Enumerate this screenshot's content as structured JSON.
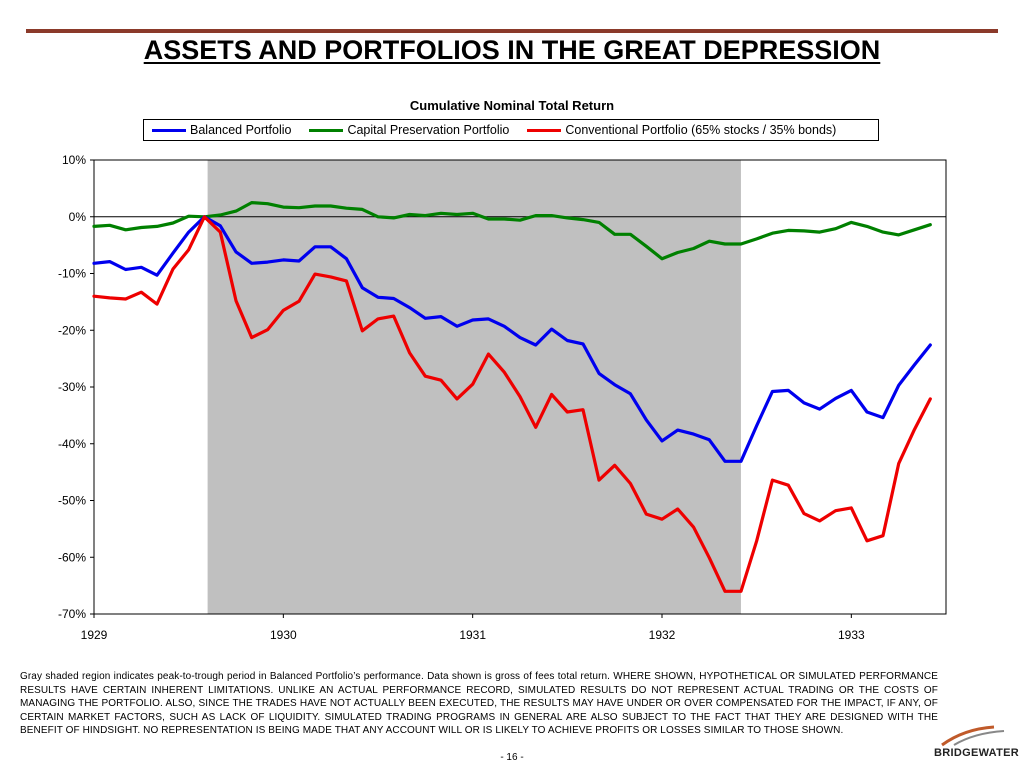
{
  "slide": {
    "title": "ASSETS AND PORTFOLIOS IN THE GREAT DEPRESSION",
    "disclaimer": "Gray shaded region indicates peak-to-trough period in Balanced Portfolio’s performance.  Data shown is gross of fees total return.  WHERE SHOWN, HYPOTHETICAL OR SIMULATED PERFORMANCE RESULTS HAVE CERTAIN INHERENT LIMITATIONS.  UNLIKE AN ACTUAL PERFORMANCE RECORD, SIMULATED RESULTS DO NOT REPRESENT ACTUAL TRADING OR THE COSTS OF MANAGING THE PORTFOLIO.  ALSO, SINCE THE TRADES HAVE NOT ACTUALLY BEEN EXECUTED, THE RESULTS MAY HAVE UNDER OR OVER COMPENSATED FOR THE IMPACT, IF ANY, OF CERTAIN MARKET FACTORS, SUCH AS LACK OF LIQUIDITY.  SIMULATED TRADING PROGRAMS IN GENERAL ARE ALSO SUBJECT TO THE FACT THAT THEY ARE DESIGNED WITH THE BENEFIT OF HINDSIGHT.  NO REPRESENTATION IS BEING MADE THAT ANY ACCOUNT WILL OR IS LIKELY TO ACHIEVE PROFITS OR LOSSES SIMILAR TO THOSE SHOWN.",
    "page_number": "- 16 -",
    "logo_text": "BRIDGEWATER"
  },
  "colors": {
    "title_rule": "#8b3a2a",
    "balanced": "#0000ee",
    "capital_preservation": "#008000",
    "conventional": "#ee0000",
    "shade": "#c0c0c0"
  },
  "chart_data": {
    "type": "line",
    "title": "Cumulative Nominal Total Return",
    "xlabel": "",
    "ylabel": "",
    "x_ticks": [
      "1929",
      "1930",
      "1931",
      "1932",
      "1933"
    ],
    "y_ticks": [
      "10%",
      "0%",
      "-10%",
      "-20%",
      "-30%",
      "-40%",
      "-50%",
      "-60%",
      "-70%"
    ],
    "ylim": [
      -70,
      10
    ],
    "xlim": [
      1929.0,
      1933.5
    ],
    "grid": false,
    "legend": "top",
    "shaded_region": [
      1929.6,
      1932.417
    ],
    "series": [
      {
        "name": "Balanced Portfolio",
        "color": "#0000ee",
        "x": [
          1929.0,
          1929.083,
          1929.167,
          1929.25,
          1929.333,
          1929.417,
          1929.5,
          1929.583,
          1929.667,
          1929.75,
          1929.833,
          1929.917,
          1930.0,
          1930.083,
          1930.167,
          1930.25,
          1930.333,
          1930.417,
          1930.5,
          1930.583,
          1930.667,
          1930.75,
          1930.833,
          1930.917,
          1931.0,
          1931.083,
          1931.167,
          1931.25,
          1931.333,
          1931.417,
          1931.5,
          1931.583,
          1931.667,
          1931.75,
          1931.833,
          1931.917,
          1932.0,
          1932.083,
          1932.167,
          1932.25,
          1932.333,
          1932.417,
          1932.5,
          1932.583,
          1932.667,
          1932.75,
          1932.833,
          1932.917,
          1933.0,
          1933.083,
          1933.167,
          1933.25,
          1933.333,
          1933.417
        ],
        "values": [
          -8.2,
          -7.9,
          -9.3,
          -8.9,
          -10.3,
          -6.4,
          -2.7,
          0.0,
          -1.6,
          -6.2,
          -8.2,
          -8.0,
          -7.6,
          -7.8,
          -5.3,
          -5.3,
          -7.4,
          -12.5,
          -14.2,
          -14.4,
          -16.0,
          -17.9,
          -17.6,
          -19.3,
          -18.2,
          -18.0,
          -19.3,
          -21.3,
          -22.6,
          -19.8,
          -21.8,
          -22.4,
          -27.6,
          -29.6,
          -31.2,
          -35.8,
          -39.5,
          -37.6,
          -38.3,
          -39.3,
          -43.1,
          -43.1,
          -36.8,
          -30.8,
          -30.6,
          -32.8,
          -33.9,
          -32.0,
          -30.6,
          -34.4,
          -35.4,
          -29.7,
          -26.1,
          -22.6
        ]
      },
      {
        "name": "Capital Preservation Portfolio",
        "color": "#008000",
        "x": [
          1929.0,
          1929.083,
          1929.167,
          1929.25,
          1929.333,
          1929.417,
          1929.5,
          1929.583,
          1929.667,
          1929.75,
          1929.833,
          1929.917,
          1930.0,
          1930.083,
          1930.167,
          1930.25,
          1930.333,
          1930.417,
          1930.5,
          1930.583,
          1930.667,
          1930.75,
          1930.833,
          1930.917,
          1931.0,
          1931.083,
          1931.167,
          1931.25,
          1931.333,
          1931.417,
          1931.5,
          1931.583,
          1931.667,
          1931.75,
          1931.833,
          1931.917,
          1932.0,
          1932.083,
          1932.167,
          1932.25,
          1932.333,
          1932.417,
          1932.5,
          1932.583,
          1932.667,
          1932.75,
          1932.833,
          1932.917,
          1933.0,
          1933.083,
          1933.167,
          1933.25,
          1933.333,
          1933.417
        ],
        "values": [
          -1.7,
          -1.5,
          -2.3,
          -1.9,
          -1.7,
          -1.1,
          0.1,
          0.0,
          0.3,
          1.0,
          2.5,
          2.3,
          1.7,
          1.6,
          1.9,
          1.9,
          1.5,
          1.3,
          0.0,
          -0.2,
          0.4,
          0.2,
          0.6,
          0.4,
          0.6,
          -0.4,
          -0.4,
          -0.6,
          0.2,
          0.2,
          -0.2,
          -0.5,
          -1.0,
          -3.1,
          -3.1,
          -5.2,
          -7.4,
          -6.3,
          -5.6,
          -4.3,
          -4.8,
          -4.8,
          -3.9,
          -2.9,
          -2.4,
          -2.5,
          -2.7,
          -2.1,
          -1.0,
          -1.7,
          -2.7,
          -3.2,
          -2.3,
          -1.4
        ]
      },
      {
        "name": "Conventional Portfolio (65% stocks / 35% bonds)",
        "color": "#ee0000",
        "x": [
          1929.0,
          1929.083,
          1929.167,
          1929.25,
          1929.333,
          1929.417,
          1929.5,
          1929.583,
          1929.667,
          1929.75,
          1929.833,
          1929.917,
          1930.0,
          1930.083,
          1930.167,
          1930.25,
          1930.333,
          1930.417,
          1930.5,
          1930.583,
          1930.667,
          1930.75,
          1930.833,
          1930.917,
          1931.0,
          1931.083,
          1931.167,
          1931.25,
          1931.333,
          1931.417,
          1931.5,
          1931.583,
          1931.667,
          1931.75,
          1931.833,
          1931.917,
          1932.0,
          1932.083,
          1932.167,
          1932.25,
          1932.333,
          1932.417,
          1932.5,
          1932.583,
          1932.667,
          1932.75,
          1932.833,
          1932.917,
          1933.0,
          1933.083,
          1933.167,
          1933.25,
          1933.333,
          1933.417
        ],
        "values": [
          -14.0,
          -14.3,
          -14.5,
          -13.3,
          -15.4,
          -9.2,
          -5.8,
          0.0,
          -2.7,
          -14.8,
          -21.3,
          -19.9,
          -16.5,
          -14.9,
          -10.1,
          -10.6,
          -11.3,
          -20.1,
          -18.0,
          -17.5,
          -24.0,
          -28.1,
          -28.8,
          -32.1,
          -29.5,
          -24.2,
          -27.4,
          -31.7,
          -37.1,
          -31.3,
          -34.4,
          -34.0,
          -46.4,
          -43.8,
          -47.0,
          -52.4,
          -53.3,
          -51.5,
          -54.7,
          -60.1,
          -66.0,
          -66.0,
          -57.1,
          -46.4,
          -47.3,
          -52.3,
          -53.6,
          -51.8,
          -51.3,
          -57.1,
          -56.2,
          -43.5,
          -37.5,
          -32.1
        ]
      }
    ]
  }
}
